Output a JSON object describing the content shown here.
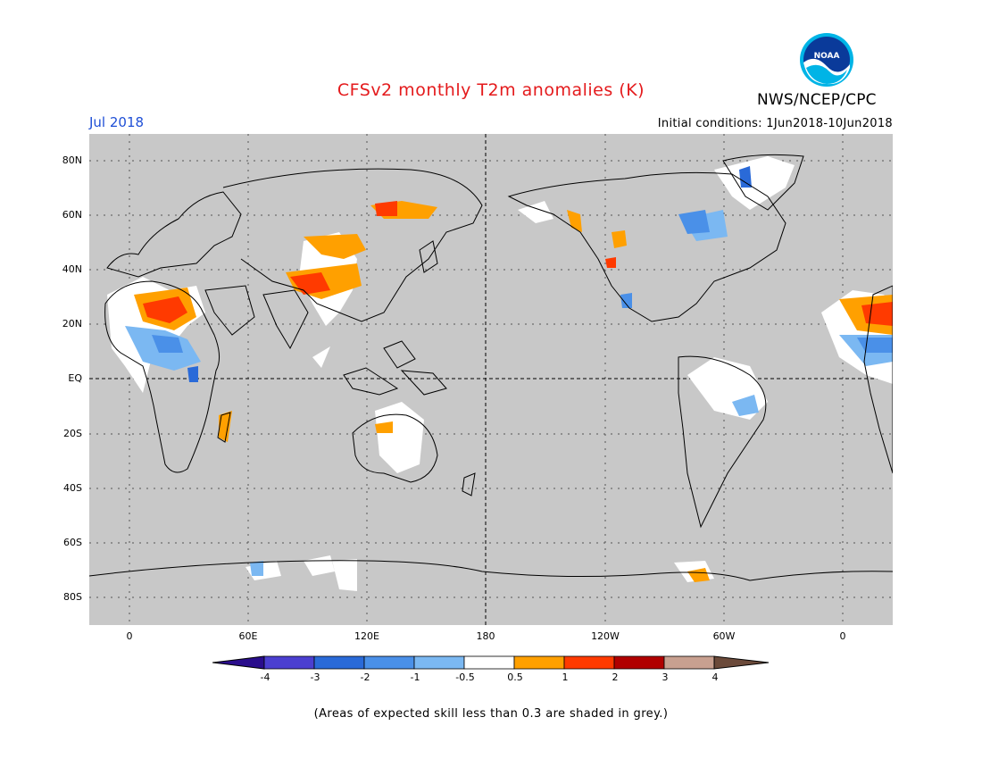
{
  "title": "CFSv2 monthly T2m anomalies (K)",
  "valid_month": "Jul 2018",
  "initial_conditions": "Initial conditions: 1Jun2018-10Jun2018",
  "agency": "NWS/NCEP/CPC",
  "logo_text": "NOAA",
  "footnote": "(Areas of expected skill less than 0.3 are shaded in grey.)",
  "lat_labels": [
    "80N",
    "60N",
    "40N",
    "20N",
    "EQ",
    "20S",
    "40S",
    "60S",
    "80S"
  ],
  "lon_labels": [
    "0",
    "60E",
    "120E",
    "180",
    "120W",
    "60W",
    "0"
  ],
  "colorbar": {
    "labels": [
      "-4",
      "-3",
      "-2",
      "-1",
      "-0.5",
      "0.5",
      "1",
      "2",
      "3",
      "4"
    ],
    "colors": [
      "#2a0d8c",
      "#4b3fd0",
      "#2a6ad8",
      "#4a90e8",
      "#7bb8f2",
      "#ffffff",
      "#ffa000",
      "#ff3a00",
      "#b00000",
      "#c8a090",
      "#6b4a3a"
    ]
  },
  "colors": {
    "no_skill_grey": "#c8c8c8",
    "title_red": "#e41a1c",
    "month_blue": "#1f4fd6"
  }
}
